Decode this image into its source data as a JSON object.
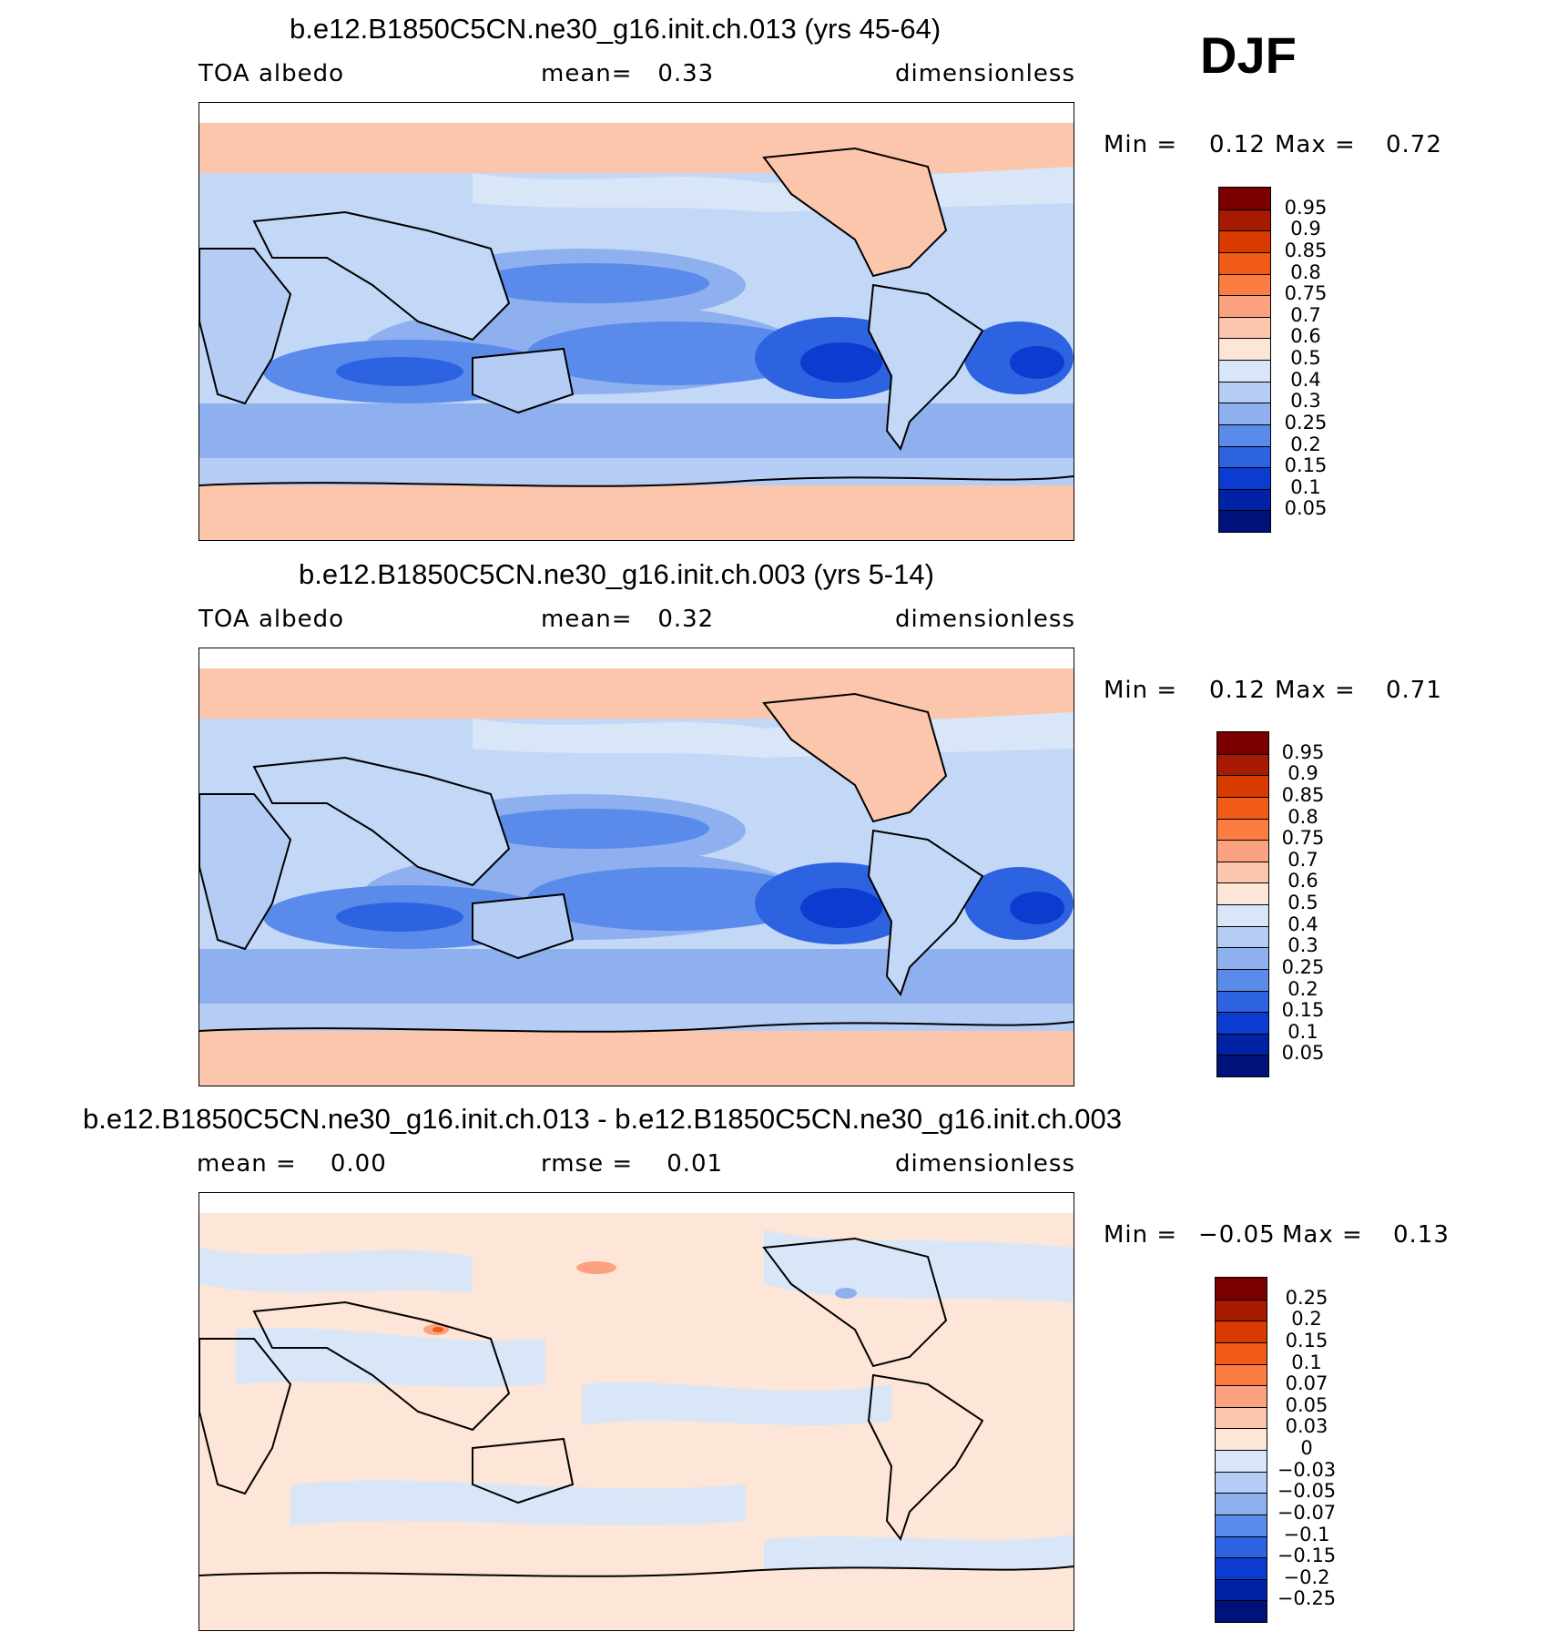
{
  "season": "DJF",
  "panels": [
    {
      "title": "b.e12.B1850C5CN.ne30_g16.init.ch.013 (yrs 45-64)",
      "left_label": "TOA albedo",
      "center_label": "mean=   0.33",
      "right_label": "dimensionless",
      "min_label": "Min =",
      "min_value": "0.12",
      "max_label": "Max =",
      "max_value": "0.72",
      "colorbar_labels": [
        "0.95",
        "0.9",
        "0.85",
        "0.8",
        "0.75",
        "0.7",
        "0.6",
        "0.5",
        "0.4",
        "0.3",
        "0.25",
        "0.2",
        "0.15",
        "0.1",
        "0.05"
      ]
    },
    {
      "title": "b.e12.B1850C5CN.ne30_g16.init.ch.003 (yrs 5-14)",
      "left_label": "TOA albedo",
      "center_label": "mean=   0.32",
      "right_label": "dimensionless",
      "min_label": "Min =",
      "min_value": "0.12",
      "max_label": "Max =",
      "max_value": "0.71",
      "colorbar_labels": [
        "0.95",
        "0.9",
        "0.85",
        "0.8",
        "0.75",
        "0.7",
        "0.6",
        "0.5",
        "0.4",
        "0.3",
        "0.25",
        "0.2",
        "0.15",
        "0.1",
        "0.05"
      ]
    },
    {
      "title": "b.e12.B1850C5CN.ne30_g16.init.ch.013 - b.e12.B1850C5CN.ne30_g16.init.ch.003",
      "left_label": "mean =    0.00",
      "center_label": "rmse =    0.01",
      "right_label": "dimensionless",
      "min_label": "Min =",
      "min_value": "−0.05",
      "max_label": "Max =",
      "max_value": "0.13",
      "colorbar_labels": [
        "0.25",
        "0.2",
        "0.15",
        "0.1",
        "0.07",
        "0.05",
        "0.03",
        "0",
        "−0.03",
        "−0.05",
        "−0.07",
        "−0.1",
        "−0.15",
        "−0.2",
        "−0.25"
      ]
    }
  ],
  "colors": {
    "colorbar": [
      "#7a0000",
      "#a51a00",
      "#d93a00",
      "#f15a17",
      "#fb7d42",
      "#fca280",
      "#fcc6ad",
      "#fde6d7",
      "#d9e6f7",
      "#b5cdf4",
      "#8fb0ef",
      "#5a8bea",
      "#2d63e0",
      "#0c3bd0",
      "#0022a5",
      "#00127a"
    ],
    "ocean_mid": "#c3d8f7",
    "ocean_low": "#5a8bea",
    "ocean_lower": "#2d63e0",
    "ocean_lowest": "#0c3bd0",
    "polar": "#fcc6ad",
    "land": "#b5cdf4",
    "diff_pos": "#fde6d7",
    "diff_neg": "#d9e6f7"
  }
}
